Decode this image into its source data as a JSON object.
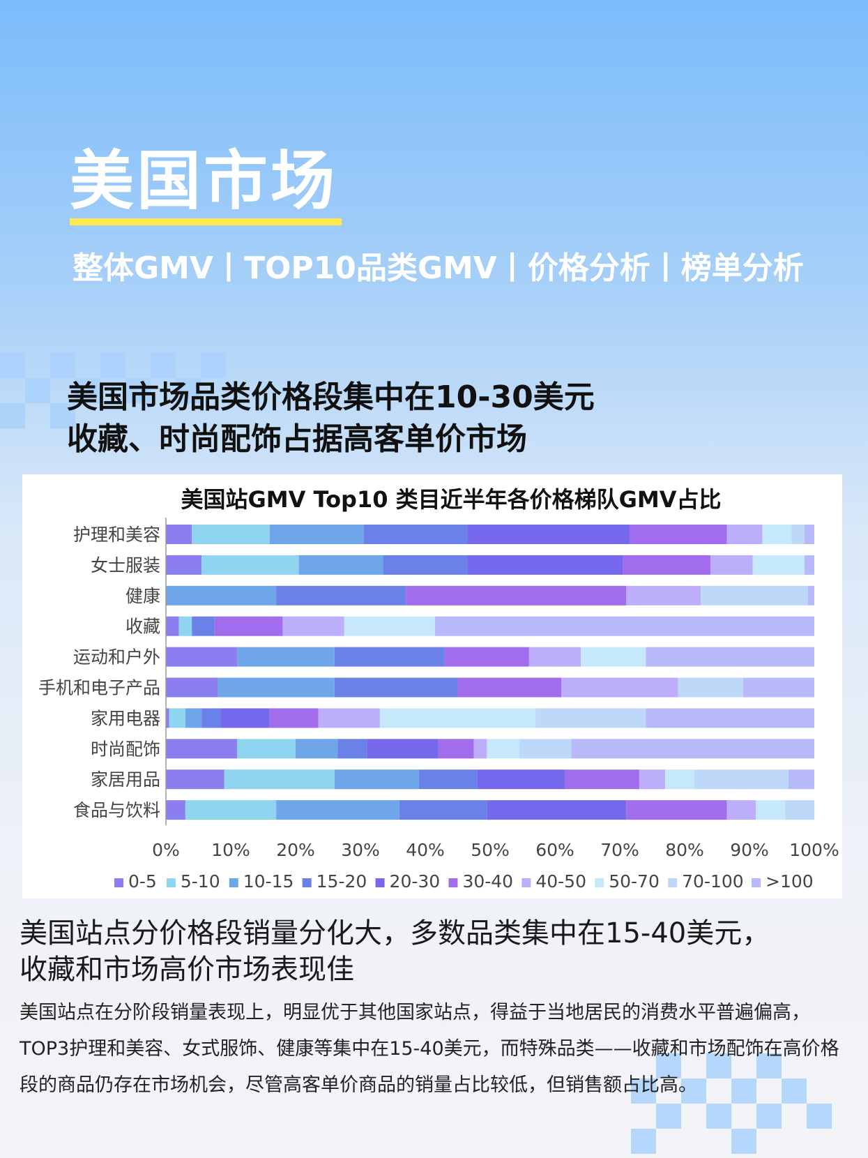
{
  "header": {
    "title": "美国市场",
    "subtitle": "整体GMV丨TOP10品类GMV丨价格分析丨榜单分析"
  },
  "headline": {
    "line1": "美国市场品类价格段集中在10-30美元",
    "line2": "收藏、时尚配饰占据高客单价市场"
  },
  "chart_data": {
    "type": "bar",
    "orientation": "horizontal",
    "stacked": true,
    "percent": true,
    "title": "美国站GMV  Top10  类目近半年各价格梯队GMV占比",
    "categories": [
      "护理和美容",
      "女士服装",
      "健康",
      "收藏",
      "运动和户外",
      "手机和电子产品",
      "家用电器",
      "时尚配饰",
      "家居用品",
      "食品与饮料"
    ],
    "x_ticks": [
      "0%",
      "10%",
      "20%",
      "30%",
      "40%",
      "50%",
      "60%",
      "70%",
      "80%",
      "90%",
      "100%"
    ],
    "xlim": [
      0,
      100
    ],
    "legend_position": "bottom",
    "colors": [
      "#8b7ff0",
      "#8fd5f0",
      "#6fa6ea",
      "#6a82e8",
      "#7568ec",
      "#a16ded",
      "#bcaefa",
      "#c5e8fa",
      "#bdd8f8",
      "#b7b9f8"
    ],
    "series": [
      {
        "name": "0-5",
        "values": [
          4,
          5.5,
          0,
          2,
          11,
          8,
          0.5,
          11,
          9,
          3
        ]
      },
      {
        "name": "5-10",
        "values": [
          12,
          15,
          0,
          2,
          0,
          0,
          2.5,
          9,
          17,
          14
        ]
      },
      {
        "name": "10-15",
        "values": [
          14.5,
          13,
          17,
          0,
          15,
          18,
          2.5,
          6.5,
          13,
          19
        ]
      },
      {
        "name": "15-20",
        "values": [
          16,
          13,
          20,
          3.5,
          17,
          19,
          3,
          4.5,
          9,
          13.5
        ]
      },
      {
        "name": "20-30",
        "values": [
          25,
          24,
          0,
          0,
          0,
          0,
          7.5,
          11,
          13.5,
          21.5
        ]
      },
      {
        "name": "30-40",
        "values": [
          15,
          13.5,
          34,
          10.5,
          13,
          16,
          7.5,
          5.5,
          11.5,
          15.5
        ]
      },
      {
        "name": "40-50",
        "values": [
          5.5,
          6.5,
          11.5,
          9.5,
          8,
          18,
          9.5,
          2,
          4,
          4.5
        ]
      },
      {
        "name": "50-70",
        "values": [
          4.5,
          8,
          0,
          14,
          10,
          0,
          24,
          5,
          4.5,
          4.5
        ]
      },
      {
        "name": "70-100",
        "values": [
          2,
          0,
          16.5,
          0,
          0,
          10,
          17,
          8,
          14.5,
          4.5
        ]
      },
      {
        "name": ">100",
        "values": [
          1.5,
          1.5,
          1,
          58.5,
          26,
          11,
          26,
          37.5,
          4,
          0
        ]
      }
    ]
  },
  "section": {
    "heading_line1": "美国站点分价格段销量分化大，多数品类集中在15-40美元，",
    "heading_line2": "收藏和市场高价市场表现佳",
    "body": "美国站点在分阶段销量表现上，明显优于其他国家站点，得益于当地居民的消费水平普遍偏高，TOP3护理和美容、女式服饰、健康等集中在15-40美元，而特殊品类——收藏和市场配饰在高价格段的商品仍存在市场机会，尽管高客单价商品的销量占比较低，但销售额占比高。"
  }
}
